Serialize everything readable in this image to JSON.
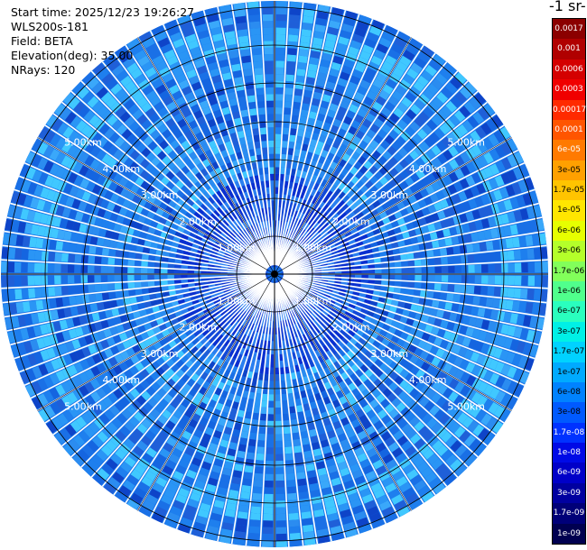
{
  "header": {
    "start_time": "Start time: 2025/12/23 19:26:27",
    "instrument": "WLS200s-181",
    "field": "Field: BETA",
    "elevation": "Elevation(deg): 35.00",
    "nrays": "NRays: 120"
  },
  "colorbar": {
    "title": "-1 sr-",
    "labels": [
      "0.0017",
      "0.001",
      "0.0006",
      "0.0003",
      "0.00017",
      "0.0001",
      "6e-05",
      "3e-05",
      "1.7e-05",
      "1e-05",
      "6e-06",
      "3e-06",
      "1.7e-06",
      "1e-06",
      "6e-07",
      "3e-07",
      "1.7e-07",
      "1e-07",
      "6e-08",
      "3e-08",
      "1.7e-08",
      "1e-08",
      "6e-09",
      "3e-09",
      "1.7e-09",
      "1e-09"
    ],
    "colors": [
      "#8b0000",
      "#b00000",
      "#d40000",
      "#f00000",
      "#ff2a00",
      "#ff5500",
      "#ff7a00",
      "#ffa000",
      "#ffc400",
      "#ffe600",
      "#e6ff00",
      "#b4ff2a",
      "#82ff5a",
      "#50ff8c",
      "#2affbe",
      "#00f0e6",
      "#00d2ff",
      "#00aaff",
      "#0082ff",
      "#005aff",
      "#0032ff",
      "#000ae6",
      "#0000c8",
      "#0000a0",
      "#000078",
      "#000050"
    ],
    "text_colors": [
      "#ffffff",
      "#ffffff",
      "#ffffff",
      "#ffffff",
      "#ffffff",
      "#ffffff",
      "#ffffff",
      "#000000",
      "#000000",
      "#000000",
      "#000000",
      "#000000",
      "#000000",
      "#000000",
      "#000000",
      "#000000",
      "#000000",
      "#000000",
      "#000000",
      "#000000",
      "#ffffff",
      "#ffffff",
      "#ffffff",
      "#ffffff",
      "#ffffff",
      "#ffffff"
    ]
  },
  "range_labels": [
    "1.00km",
    "2.00km",
    "3.00km",
    "4.00km",
    "5.00km"
  ],
  "rays": 120
}
